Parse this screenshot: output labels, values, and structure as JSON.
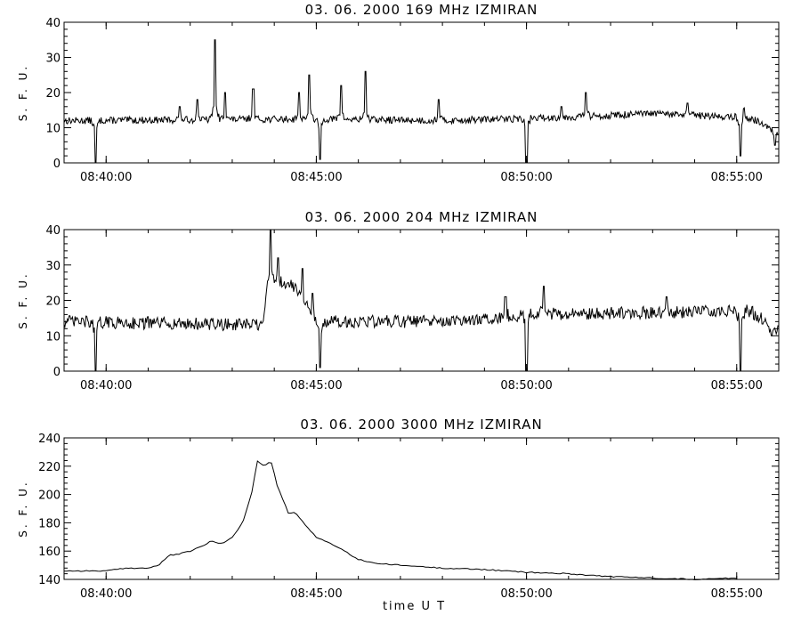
{
  "figure": {
    "xlabel": "time  U T"
  },
  "chart_data": [
    {
      "type": "line",
      "title": "03.  06.  2000    169  MHz    IZMIRAN",
      "ylabel": "S. F. U.",
      "ylim": [
        0,
        40
      ],
      "yticks": [
        0,
        10,
        20,
        30,
        40
      ],
      "xlim": [
        "08:39:00",
        "08:56:00"
      ],
      "xticks": [
        "08:40:00",
        "08:45:00",
        "08:50:00",
        "08:55:00"
      ],
      "baseline": 12.5,
      "noise": 1.0,
      "spikes": [
        {
          "t": "08:41:45",
          "y": 16
        },
        {
          "t": "08:42:10",
          "y": 18
        },
        {
          "t": "08:42:35",
          "y": 35
        },
        {
          "t": "08:42:50",
          "y": 20
        },
        {
          "t": "08:43:30",
          "y": 21
        },
        {
          "t": "08:44:35",
          "y": 20
        },
        {
          "t": "08:44:50",
          "y": 25
        },
        {
          "t": "08:45:35",
          "y": 22
        },
        {
          "t": "08:46:10",
          "y": 26
        },
        {
          "t": "08:47:55",
          "y": 18
        },
        {
          "t": "08:50:50",
          "y": 16
        },
        {
          "t": "08:51:25",
          "y": 20
        },
        {
          "t": "08:53:50",
          "y": 17
        },
        {
          "t": "08:55:10",
          "y": 16
        }
      ],
      "dips": [
        {
          "t": "08:39:45",
          "y": 0
        },
        {
          "t": "08:45:05",
          "y": 1
        },
        {
          "t": "08:50:00",
          "y": 0
        },
        {
          "t": "08:55:05",
          "y": 2
        },
        {
          "t": "08:55:55",
          "y": 5
        }
      ],
      "drift": [
        [
          "08:39:00",
          12
        ],
        [
          "08:45:00",
          12.5
        ],
        [
          "08:48:00",
          12
        ],
        [
          "08:51:00",
          13
        ],
        [
          "08:53:00",
          14
        ],
        [
          "08:55:00",
          13
        ],
        [
          "08:55:30",
          12
        ],
        [
          "08:56:00",
          8
        ]
      ]
    },
    {
      "type": "line",
      "title": "03.  06.  2000    204  MHz    IZMIRAN",
      "ylabel": "S. F. U.",
      "ylim": [
        0,
        40
      ],
      "yticks": [
        0,
        10,
        20,
        30,
        40
      ],
      "xlim": [
        "08:39:00",
        "08:56:00"
      ],
      "xticks": [
        "08:40:00",
        "08:45:00",
        "08:50:00",
        "08:55:00"
      ],
      "baseline": 14,
      "noise": 1.8,
      "spikes": [
        {
          "t": "08:43:55",
          "y": 40
        },
        {
          "t": "08:44:05",
          "y": 32
        },
        {
          "t": "08:44:20",
          "y": 25
        },
        {
          "t": "08:44:40",
          "y": 29
        },
        {
          "t": "08:44:55",
          "y": 22
        },
        {
          "t": "08:49:30",
          "y": 21
        },
        {
          "t": "08:50:25",
          "y": 24
        },
        {
          "t": "08:53:20",
          "y": 21
        }
      ],
      "dips": [
        {
          "t": "08:39:45",
          "y": 0
        },
        {
          "t": "08:45:05",
          "y": 1
        },
        {
          "t": "08:50:00",
          "y": 0
        },
        {
          "t": "08:55:05",
          "y": 0
        },
        {
          "t": "08:55:50",
          "y": 10
        }
      ],
      "drift": [
        [
          "08:39:00",
          14
        ],
        [
          "08:43:45",
          13
        ],
        [
          "08:43:50",
          26
        ],
        [
          "08:44:30",
          24
        ],
        [
          "08:45:00",
          14
        ],
        [
          "08:48:30",
          14
        ],
        [
          "08:50:00",
          16
        ],
        [
          "08:55:20",
          17
        ],
        [
          "08:56:00",
          11
        ]
      ]
    },
    {
      "type": "line",
      "title": "03.  06.  2000    3000  MHz    IZMIRAN",
      "ylabel": "S. F. U.",
      "ylim": [
        140,
        240
      ],
      "yticks": [
        140,
        160,
        180,
        200,
        220,
        240
      ],
      "xlim": [
        "08:39:00",
        "08:56:00"
      ],
      "xticks": [
        "08:40:00",
        "08:45:00",
        "08:50:00",
        "08:55:00"
      ],
      "points": [
        [
          "08:39:00",
          146
        ],
        [
          "08:39:30",
          146
        ],
        [
          "08:40:00",
          146
        ],
        [
          "08:40:30",
          148
        ],
        [
          "08:41:00",
          148
        ],
        [
          "08:41:15",
          150
        ],
        [
          "08:41:30",
          157
        ],
        [
          "08:41:45",
          158
        ],
        [
          "08:42:00",
          160
        ],
        [
          "08:42:15",
          163
        ],
        [
          "08:42:30",
          167
        ],
        [
          "08:42:45",
          165
        ],
        [
          "08:43:00",
          170
        ],
        [
          "08:43:15",
          180
        ],
        [
          "08:43:30",
          205
        ],
        [
          "08:43:35",
          224
        ],
        [
          "08:43:45",
          220
        ],
        [
          "08:43:55",
          224
        ],
        [
          "08:44:05",
          205
        ],
        [
          "08:44:20",
          187
        ],
        [
          "08:44:30",
          187
        ],
        [
          "08:44:45",
          178
        ],
        [
          "08:45:00",
          170
        ],
        [
          "08:45:30",
          163
        ],
        [
          "08:46:00",
          154
        ],
        [
          "08:46:30",
          151
        ],
        [
          "08:47:00",
          150
        ],
        [
          "08:48:00",
          148
        ],
        [
          "08:49:00",
          147
        ],
        [
          "08:50:00",
          145
        ],
        [
          "08:51:00",
          144
        ],
        [
          "08:52:00",
          142
        ],
        [
          "08:53:00",
          141
        ],
        [
          "08:54:00",
          140
        ],
        [
          "08:55:00",
          141
        ]
      ]
    }
  ]
}
